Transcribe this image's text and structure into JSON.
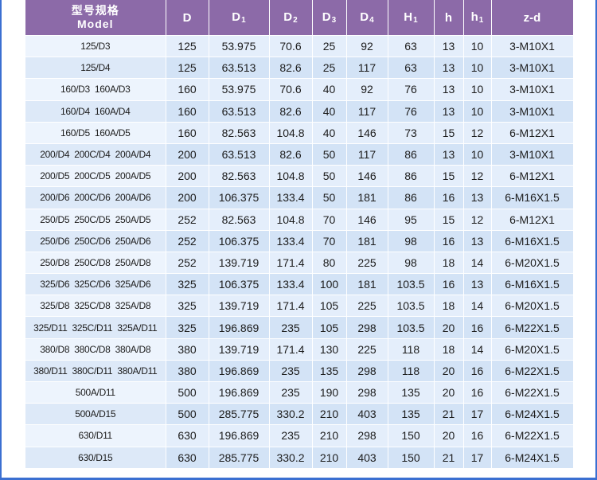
{
  "table": {
    "headers": [
      {
        "main": "型号规格",
        "main2": "Model",
        "sub": ""
      },
      {
        "main": "D",
        "sub": ""
      },
      {
        "main": "D",
        "sub": "1"
      },
      {
        "main": "D",
        "sub": "2"
      },
      {
        "main": "D",
        "sub": "3"
      },
      {
        "main": "D",
        "sub": "4"
      },
      {
        "main": "H",
        "sub": "1"
      },
      {
        "main": "h",
        "sub": ""
      },
      {
        "main": "h",
        "sub": "1"
      },
      {
        "main": "z-d",
        "sub": ""
      }
    ],
    "rows": [
      [
        "125/D3",
        "125",
        "53.975",
        "70.6",
        "25",
        "92",
        "63",
        "13",
        "10",
        "3-M10X1"
      ],
      [
        "125/D4",
        "125",
        "63.513",
        "82.6",
        "25",
        "117",
        "63",
        "13",
        "10",
        "3-M10X1"
      ],
      [
        "160/D3  160A/D3",
        "160",
        "53.975",
        "70.6",
        "40",
        "92",
        "76",
        "13",
        "10",
        "3-M10X1"
      ],
      [
        "160/D4  160A/D4",
        "160",
        "63.513",
        "82.6",
        "40",
        "117",
        "76",
        "13",
        "10",
        "3-M10X1"
      ],
      [
        "160/D5  160A/D5",
        "160",
        "82.563",
        "104.8",
        "40",
        "146",
        "73",
        "15",
        "12",
        "6-M12X1"
      ],
      [
        "200/D4  200C/D4  200A/D4",
        "200",
        "63.513",
        "82.6",
        "50",
        "117",
        "86",
        "13",
        "10",
        "3-M10X1"
      ],
      [
        "200/D5  200C/D5  200A/D5",
        "200",
        "82.563",
        "104.8",
        "50",
        "146",
        "86",
        "15",
        "12",
        "6-M12X1"
      ],
      [
        "200/D6  200C/D6  200A/D6",
        "200",
        "106.375",
        "133.4",
        "50",
        "181",
        "86",
        "16",
        "13",
        "6-M16X1.5"
      ],
      [
        "250/D5  250C/D5  250A/D5",
        "252",
        "82.563",
        "104.8",
        "70",
        "146",
        "95",
        "15",
        "12",
        "6-M12X1"
      ],
      [
        "250/D6  250C/D6  250A/D6",
        "252",
        "106.375",
        "133.4",
        "70",
        "181",
        "98",
        "16",
        "13",
        "6-M16X1.5"
      ],
      [
        "250/D8  250C/D8  250A/D8",
        "252",
        "139.719",
        "171.4",
        "80",
        "225",
        "98",
        "18",
        "14",
        "6-M20X1.5"
      ],
      [
        "325/D6  325C/D6  325A/D6",
        "325",
        "106.375",
        "133.4",
        "100",
        "181",
        "103.5",
        "16",
        "13",
        "6-M16X1.5"
      ],
      [
        "325/D8  325C/D8  325A/D8",
        "325",
        "139.719",
        "171.4",
        "105",
        "225",
        "103.5",
        "18",
        "14",
        "6-M20X1.5"
      ],
      [
        "325/D11  325C/D11  325A/D11",
        "325",
        "196.869",
        "235",
        "105",
        "298",
        "103.5",
        "20",
        "16",
        "6-M22X1.5"
      ],
      [
        "380/D8  380C/D8  380A/D8",
        "380",
        "139.719",
        "171.4",
        "130",
        "225",
        "118",
        "18",
        "14",
        "6-M20X1.5"
      ],
      [
        "380/D11  380C/D11  380A/D11",
        "380",
        "196.869",
        "235",
        "135",
        "298",
        "118",
        "20",
        "16",
        "6-M22X1.5"
      ],
      [
        "500A/D11",
        "500",
        "196.869",
        "235",
        "190",
        "298",
        "135",
        "20",
        "16",
        "6-M22X1.5"
      ],
      [
        "500A/D15",
        "500",
        "285.775",
        "330.2",
        "210",
        "403",
        "135",
        "21",
        "17",
        "6-M24X1.5"
      ],
      [
        "630/D11",
        "630",
        "196.869",
        "235",
        "210",
        "298",
        "150",
        "20",
        "16",
        "6-M22X1.5"
      ],
      [
        "630/D15",
        "630",
        "285.775",
        "330.2",
        "210",
        "403",
        "150",
        "21",
        "17",
        "6-M24X1.5"
      ]
    ]
  },
  "colors": {
    "header_bg": "#8c6aa8",
    "row_odd": "#e4eefb",
    "row_even": "#d3e3f6",
    "frame_border": "#3b6fd1"
  }
}
